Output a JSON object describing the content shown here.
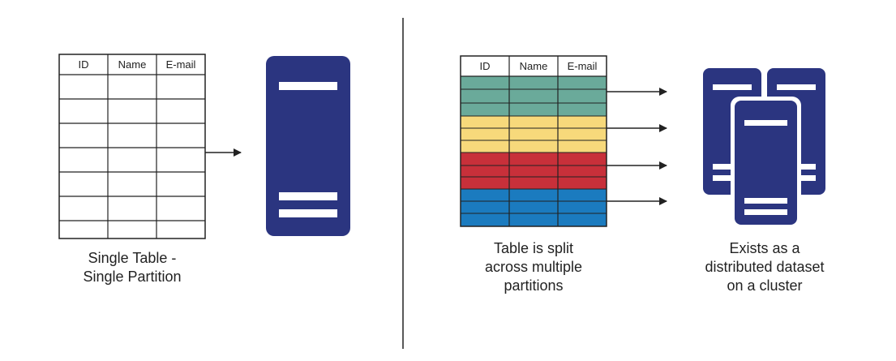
{
  "colors": {
    "server": "#2b3580",
    "stripe": "#ffffff",
    "line": "#222222",
    "partition_teal": "#6aaa9a",
    "partition_yellow": "#f7d97b",
    "partition_red": "#c8303a",
    "partition_blue": "#1b7bbf"
  },
  "left": {
    "table_headers": [
      "ID",
      "Name",
      "E-mail"
    ],
    "caption_lines": [
      "Single Table -",
      "Single Partition"
    ]
  },
  "right": {
    "table_headers": [
      "ID",
      "Name",
      "E-mail"
    ],
    "partition_colors": [
      "partition_teal",
      "partition_yellow",
      "partition_red",
      "partition_blue"
    ],
    "table_caption_lines": [
      "Table is split",
      "across multiple",
      "partitions"
    ],
    "cluster_caption_lines": [
      "Exists as a",
      "distributed dataset",
      "on a cluster"
    ]
  },
  "icons": [
    "server-icon",
    "cluster-icon",
    "arrow-icon"
  ]
}
